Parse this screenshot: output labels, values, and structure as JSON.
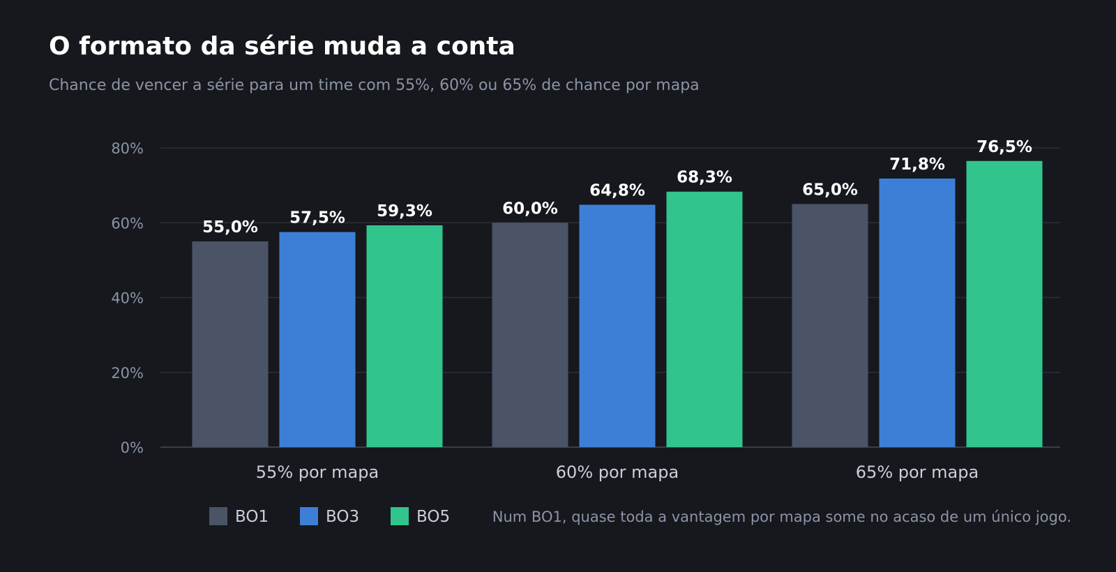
{
  "header": {
    "title": "O formato da série muda a conta",
    "subtitle": "Chance de vencer a série para um time com 55%, 60% ou 65% de chance por mapa"
  },
  "note": "Num BO1, quase toda a vantagem por mapa some no acaso de um único jogo.",
  "colors": {
    "background": "#16181d",
    "BO1": "#4a5466",
    "BO3": "#3d7fd6",
    "BO5": "#31c48d"
  },
  "chart_data": {
    "type": "bar",
    "title": "O formato da série muda a conta",
    "subtitle": "Chance de vencer a série para um time com 55%, 60% ou 65% de chance por mapa",
    "categories": [
      "55% por mapa",
      "60% por mapa",
      "65% por mapa"
    ],
    "series": [
      {
        "name": "BO1",
        "values": [
          55.0,
          60.0,
          65.0
        ],
        "labels": [
          "55,0%",
          "60,0%",
          "65,0%"
        ]
      },
      {
        "name": "BO3",
        "values": [
          57.5,
          64.8,
          71.8
        ],
        "labels": [
          "57,5%",
          "64,8%",
          "71,8%"
        ]
      },
      {
        "name": "BO5",
        "values": [
          59.3,
          68.3,
          76.5
        ],
        "labels": [
          "59,3%",
          "68,3%",
          "76,5%"
        ]
      }
    ],
    "yticks": [
      "0%",
      "20%",
      "40%",
      "60%",
      "80%"
    ],
    "ytick_values": [
      0,
      20,
      40,
      60,
      80
    ],
    "ylim": [
      0,
      80
    ],
    "xlabel": "",
    "ylabel": "",
    "grid": true,
    "legend": "bottom"
  }
}
